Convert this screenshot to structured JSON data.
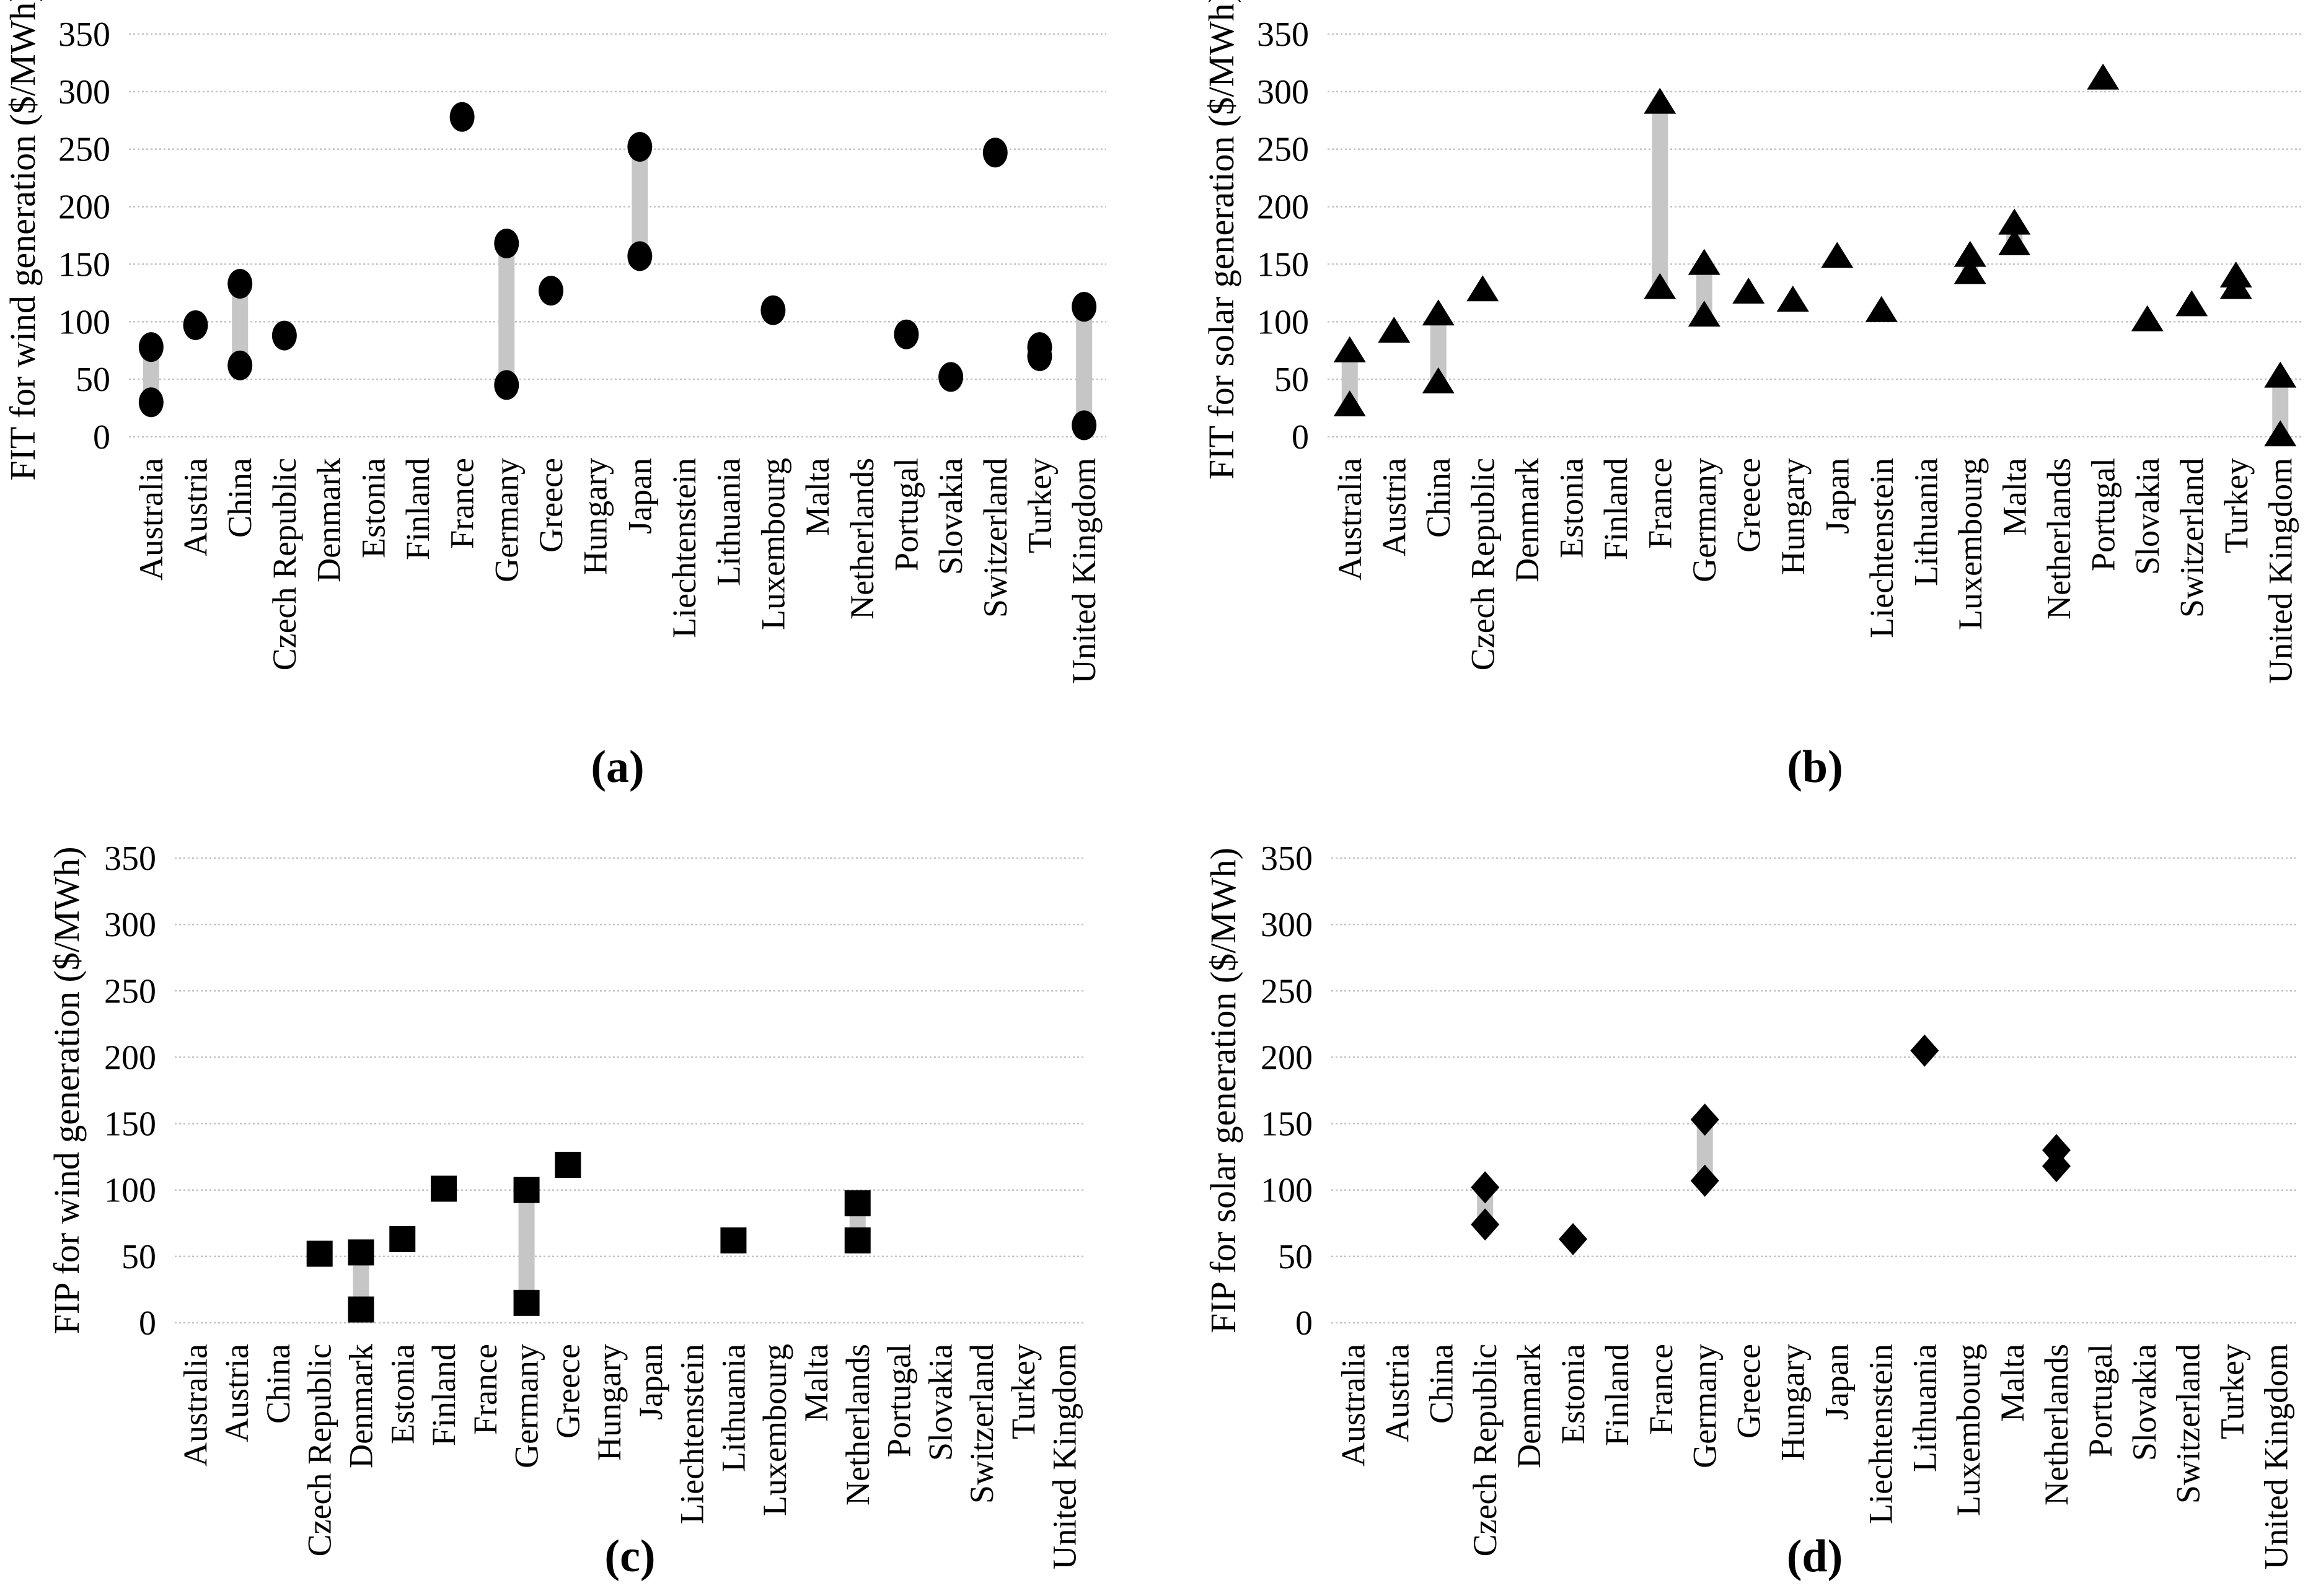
{
  "figure": {
    "description": "Four scatter panels of feed-in tariff (FIT) and feed-in premium (FIP) levels for wind and solar generation by country",
    "background": "#ffffff"
  },
  "colors": {
    "marker": "#000000",
    "range_bar": "#c6c6c6",
    "gridline": "#c3c3c3",
    "text": "#000000"
  },
  "categories": [
    "Australia",
    "Austria",
    "China",
    "Czech Republic",
    "Denmark",
    "Estonia",
    "Finland",
    "France",
    "Germany",
    "Greece",
    "Hungary",
    "Japan",
    "Liechtenstein",
    "Lithuania",
    "Luxembourg",
    "Malta",
    "Netherlands",
    "Portugal",
    "Slovakia",
    "Switzerland",
    "Turkey",
    "United Kingdom"
  ],
  "axis": {
    "min": 0,
    "max": 350,
    "tick_step": 50,
    "ticks": [
      350,
      300,
      250,
      200,
      150,
      100,
      50,
      0
    ],
    "unit": "$/MWh"
  },
  "chart_data": [
    {
      "type": "scatter",
      "panel": "a",
      "caption": "(a)",
      "marker": "circle",
      "ylabel": "FIT  for wind generation ($/MWh)",
      "ylim": [
        0,
        350
      ],
      "grid": true,
      "series": [
        {
          "c": "Australia",
          "v": [
            30,
            78
          ],
          "bar": true
        },
        {
          "c": "Austria",
          "v": [
            97
          ]
        },
        {
          "c": "China",
          "v": [
            62,
            133
          ],
          "bar": true
        },
        {
          "c": "Czech Republic",
          "v": [
            88
          ]
        },
        {
          "c": "France",
          "v": [
            278
          ]
        },
        {
          "c": "Germany",
          "v": [
            45,
            168
          ],
          "bar": true
        },
        {
          "c": "Greece",
          "v": [
            127
          ]
        },
        {
          "c": "Japan",
          "v": [
            157,
            252
          ],
          "bar": true
        },
        {
          "c": "Luxembourg",
          "v": [
            110
          ]
        },
        {
          "c": "Portugal",
          "v": [
            89
          ]
        },
        {
          "c": "Slovakia",
          "v": [
            52
          ]
        },
        {
          "c": "Switzerland",
          "v": [
            247
          ]
        },
        {
          "c": "Turkey",
          "v": [
            70,
            78
          ],
          "bar": false
        },
        {
          "c": "United Kingdom",
          "v": [
            10,
            113
          ],
          "bar": true
        }
      ]
    },
    {
      "type": "scatter",
      "panel": "b",
      "caption": "(b)",
      "marker": "triangle",
      "ylabel": "FIT  for solar generation ($/MWh)",
      "ylim": [
        0,
        350
      ],
      "grid": true,
      "series": [
        {
          "c": "Australia",
          "v": [
            28,
            75
          ],
          "bar": true
        },
        {
          "c": "Austria",
          "v": [
            92
          ]
        },
        {
          "c": "China",
          "v": [
            48,
            107
          ],
          "bar": true
        },
        {
          "c": "Czech Republic",
          "v": [
            128
          ]
        },
        {
          "c": "France",
          "v": [
            130,
            291
          ],
          "bar": true
        },
        {
          "c": "Germany",
          "v": [
            106,
            151
          ],
          "bar": true
        },
        {
          "c": "Greece",
          "v": [
            126
          ]
        },
        {
          "c": "Hungary",
          "v": [
            119
          ]
        },
        {
          "c": "Japan",
          "v": [
            157
          ]
        },
        {
          "c": "Liechtenstein",
          "v": [
            110
          ]
        },
        {
          "c": "Luxembourg",
          "v": [
            143,
            158
          ],
          "bar": true
        },
        {
          "c": "Malta",
          "v": [
            168,
            186
          ],
          "bar": true
        },
        {
          "c": "Portugal",
          "v": [
            312
          ]
        },
        {
          "c": "Slovakia",
          "v": [
            102
          ]
        },
        {
          "c": "Switzerland",
          "v": [
            115
          ]
        },
        {
          "c": "Turkey",
          "v": [
            130,
            140
          ],
          "bar": false
        },
        {
          "c": "United Kingdom",
          "v": [
            2,
            53
          ],
          "bar": true
        }
      ]
    },
    {
      "type": "scatter",
      "panel": "c",
      "caption": "(c)",
      "marker": "square",
      "ylabel": "FIP  for wind generation ($/MWh)",
      "ylim": [
        0,
        350
      ],
      "grid": true,
      "series": [
        {
          "c": "Czech Republic",
          "v": [
            52
          ]
        },
        {
          "c": "Denmark",
          "v": [
            10,
            53
          ],
          "bar": true
        },
        {
          "c": "Estonia",
          "v": [
            63
          ]
        },
        {
          "c": "Finland",
          "v": [
            101
          ]
        },
        {
          "c": "Germany",
          "v": [
            15,
            100
          ],
          "bar": true
        },
        {
          "c": "Greece",
          "v": [
            119
          ]
        },
        {
          "c": "Lithuania",
          "v": [
            62
          ]
        },
        {
          "c": "Netherlands",
          "v": [
            62,
            90
          ],
          "bar": true
        }
      ]
    },
    {
      "type": "scatter",
      "panel": "d",
      "caption": "(d)",
      "marker": "diamond",
      "ylabel": "FIP for solar generation ($/MWh)",
      "ylim": [
        0,
        350
      ],
      "grid": true,
      "series": [
        {
          "c": "Czech Republic",
          "v": [
            74,
            102
          ],
          "bar": true
        },
        {
          "c": "Estonia",
          "v": [
            63
          ]
        },
        {
          "c": "Germany",
          "v": [
            107,
            153
          ],
          "bar": true
        },
        {
          "c": "Lithuania",
          "v": [
            205
          ]
        },
        {
          "c": "Netherlands",
          "v": [
            118,
            130
          ],
          "bar": true
        }
      ]
    }
  ]
}
